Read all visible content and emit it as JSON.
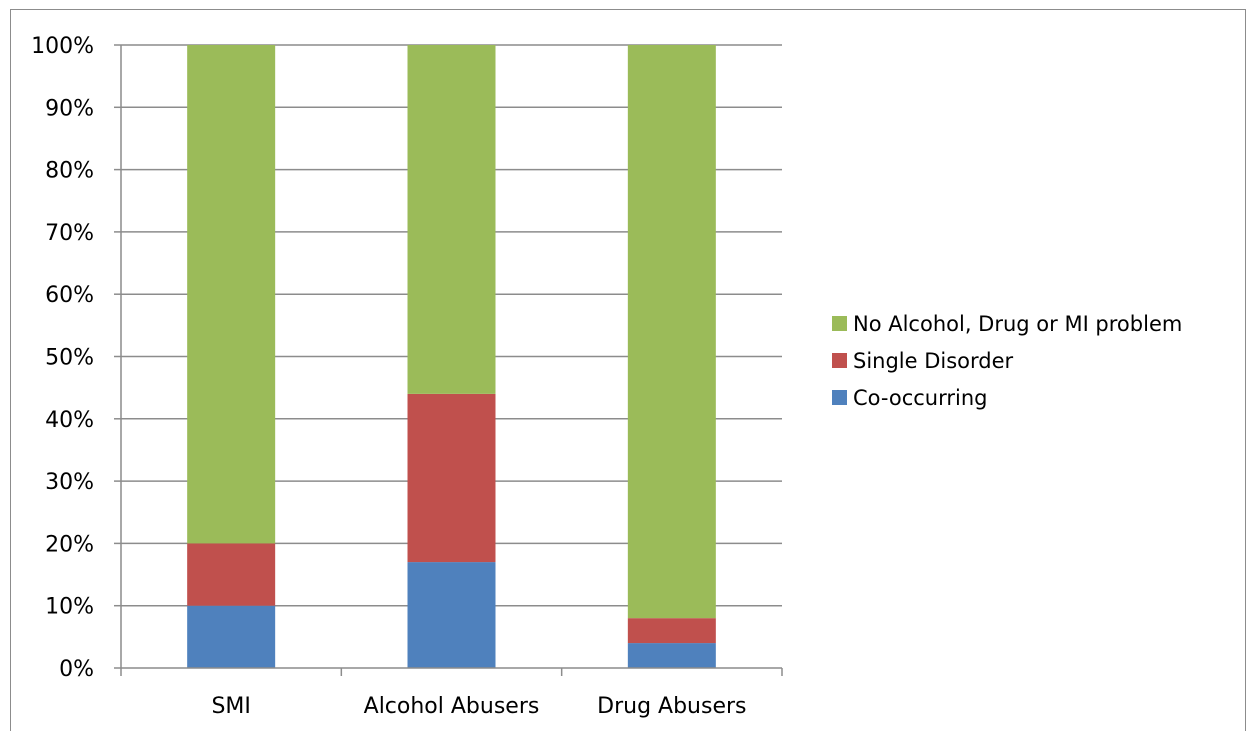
{
  "chart_data": {
    "type": "bar",
    "stacked": true,
    "title": "",
    "xlabel": "",
    "ylabel": "",
    "categories": [
      "SMI",
      "Alcohol Abusers",
      "Drug Abusers"
    ],
    "series": [
      {
        "name": "Co-occurring",
        "values": [
          10,
          17,
          4
        ],
        "color": "#4f81bd"
      },
      {
        "name": "Single Disorder",
        "values": [
          10,
          27,
          4
        ],
        "color": "#c0504d"
      },
      {
        "name": "No Alcohol, Drug or MI problem",
        "values": [
          80,
          56,
          92
        ],
        "color": "#9bbb59"
      }
    ],
    "ylim": [
      0,
      100
    ],
    "yticks": [
      0,
      10,
      20,
      30,
      40,
      50,
      60,
      70,
      80,
      90,
      100
    ],
    "ytick_labels": [
      "0%",
      "10%",
      "20%",
      "30%",
      "40%",
      "50%",
      "60%",
      "70%",
      "80%",
      "90%",
      "100%"
    ],
    "grid": true,
    "legend_placement": "right",
    "legend_order": [
      "No Alcohol, Drug or MI problem",
      "Single Disorder",
      "Co-occurring"
    ]
  }
}
